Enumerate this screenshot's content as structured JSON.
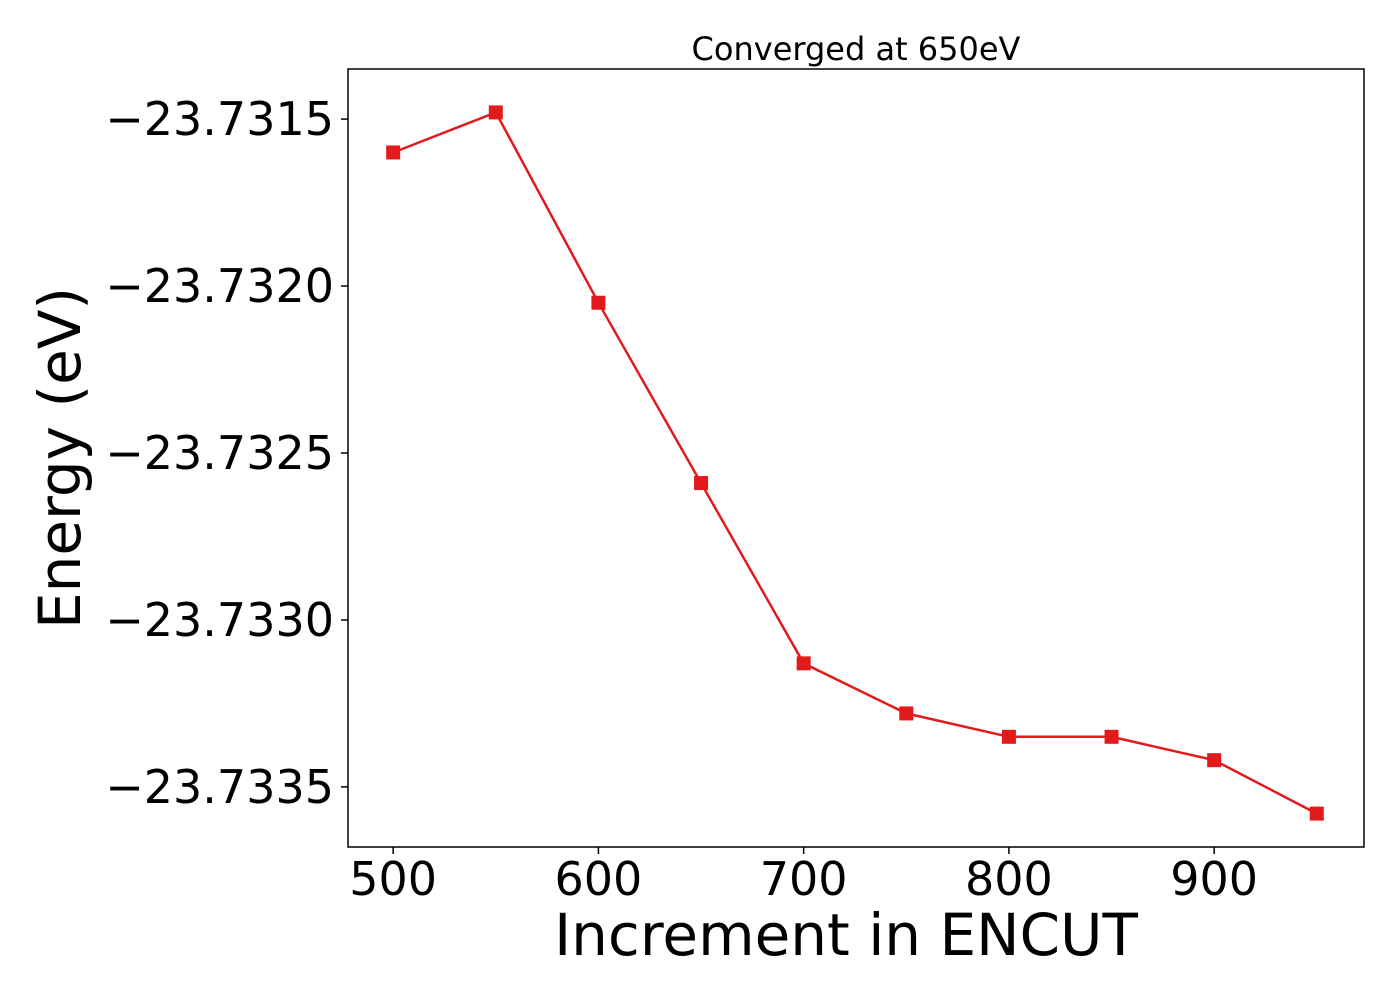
{
  "chart_data": {
    "type": "line",
    "title": "Converged at 650eV",
    "xlabel": "Increment in ENCUT",
    "ylabel": "Energy (eV)",
    "x": [
      500,
      550,
      600,
      650,
      700,
      750,
      800,
      850,
      900,
      950
    ],
    "series": [
      {
        "values": [
          -23.7316,
          -23.73148,
          -23.73205,
          -23.73259,
          -23.73313,
          -23.73328,
          -23.73335,
          -23.73335,
          -23.73342,
          -23.73358
        ],
        "color": "#e31a1c",
        "marker": "square"
      }
    ],
    "xlim": [
      478,
      973
    ],
    "ylim": [
      -23.73368,
      -23.73135
    ],
    "xticks": [
      500,
      600,
      700,
      800,
      900
    ],
    "xtick_labels": [
      "500",
      "600",
      "700",
      "800",
      "900"
    ],
    "yticks": [
      -23.7315,
      -23.732,
      -23.7325,
      -23.733,
      -23.7335
    ],
    "ytick_labels": [
      "−23.7315",
      "−23.7320",
      "−23.7325",
      "−23.7330",
      "−23.7335"
    ],
    "grid": false,
    "legend": "none"
  }
}
